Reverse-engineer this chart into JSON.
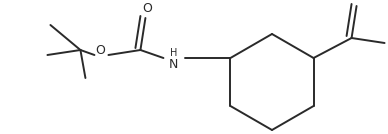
{
  "bg_color": "#ffffff",
  "line_color": "#2a2a2a",
  "line_width": 1.4,
  "fig_width": 3.88,
  "fig_height": 1.34,
  "dpi": 100,
  "xlim": [
    0,
    388
  ],
  "ylim": [
    0,
    134
  ]
}
